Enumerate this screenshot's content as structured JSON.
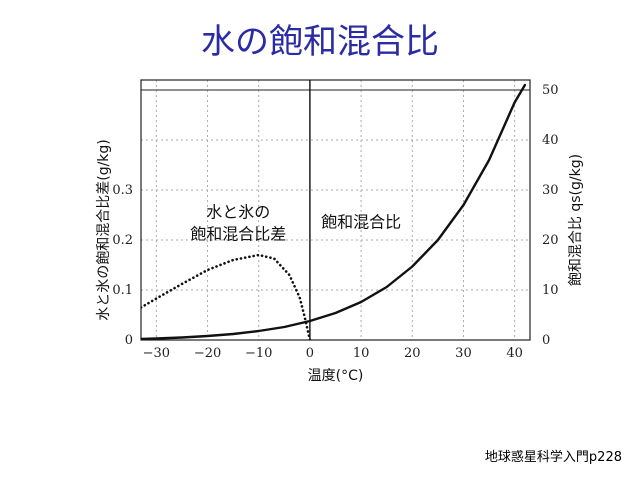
{
  "slide": {
    "title": "水の飽和混合比",
    "source": "地球惑星科学入門p228"
  },
  "chart_data": {
    "type": "line",
    "xlabel": "温度(°C)",
    "ylabel_left": "水と氷の飽和混合比差(g/kg)",
    "ylabel_right": "飽和混合比 qs(g/kg)",
    "xlim": [
      -33,
      43
    ],
    "ylim_left": [
      0,
      0.5
    ],
    "ylim_right": [
      0,
      50
    ],
    "x_ticks": [
      -30,
      -20,
      -10,
      0,
      10,
      20,
      30,
      40
    ],
    "x_tick_labels": [
      "−30",
      "−20",
      "−10",
      "0",
      "10",
      "20",
      "30",
      "40"
    ],
    "y_left_ticks": [
      0,
      0.1,
      0.2,
      0.3
    ],
    "y_left_tick_labels": [
      "0",
      "0.1",
      "0.2",
      "0.3"
    ],
    "y_right_ticks": [
      0,
      10,
      20,
      30,
      40,
      50
    ],
    "y_right_tick_labels": [
      "0",
      "10",
      "20",
      "30",
      "40",
      "50"
    ],
    "grid": true,
    "annotations": [
      {
        "lines": [
          "水と氷の",
          "飽和混合比差"
        ],
        "x": -14,
        "y_right": 24.5
      },
      {
        "lines": [
          "飽和混合比"
        ],
        "x": 10,
        "y_right": 22.5
      }
    ],
    "series": [
      {
        "name": "飽和混合比",
        "axis": "right",
        "style": "solid",
        "x": [
          -33,
          -30,
          -25,
          -20,
          -15,
          -10,
          -5,
          0,
          5,
          10,
          15,
          20,
          25,
          30,
          35,
          40,
          42
        ],
        "y": [
          0.2,
          0.3,
          0.5,
          0.8,
          1.2,
          1.8,
          2.6,
          3.8,
          5.4,
          7.6,
          10.6,
          14.7,
          20.0,
          27.0,
          36.0,
          47.5,
          51.0
        ]
      },
      {
        "name": "水と氷の飽和混合比差",
        "axis": "left",
        "style": "dotted",
        "x": [
          -33,
          -30,
          -25,
          -20,
          -15,
          -10,
          -7,
          -4,
          -2,
          -1,
          0
        ],
        "y": [
          0.065,
          0.083,
          0.112,
          0.14,
          0.16,
          0.17,
          0.163,
          0.13,
          0.085,
          0.045,
          0.0
        ]
      }
    ]
  }
}
